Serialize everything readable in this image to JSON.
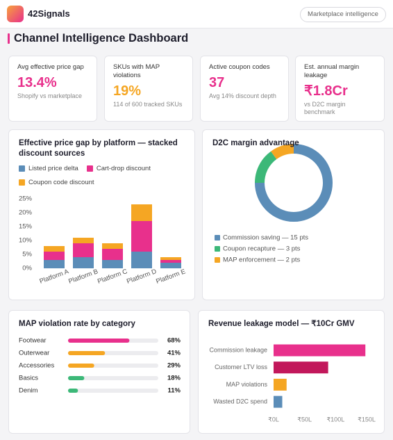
{
  "header": {
    "brand": "42Signals",
    "badge": "Marketplace intelligence"
  },
  "page_title": "Channel Intelligence Dashboard",
  "kpis": [
    {
      "label": "Avg effective price gap",
      "value": "13.4%",
      "note": "Shopify vs marketplace",
      "color": "#e8308c"
    },
    {
      "label": "SKUs with MAP violations",
      "value": "19%",
      "note": "114 of 600 tracked SKUs",
      "color": "#f5a623"
    },
    {
      "label": "Active coupon codes",
      "value": "37",
      "note": "Avg 14% discount depth",
      "color": "#e8308c"
    },
    {
      "label": "Est. annual margin leakage",
      "value": "₹1.8Cr",
      "note": "vs D2C margin benchmark",
      "color": "#e8308c"
    }
  ],
  "chart_data": [
    {
      "type": "stacked_bar",
      "title": "Effective price gap by platform — stacked discount sources",
      "categories": [
        "Platform A",
        "Platform B",
        "Platform C",
        "Platform D",
        "Platform E"
      ],
      "series": [
        {
          "name": "Listed price delta",
          "color": "#5b8db8",
          "values": [
            3,
            4,
            3,
            6,
            2
          ]
        },
        {
          "name": "Cart-drop discount",
          "color": "#e8308c",
          "values": [
            3,
            5,
            4,
            11,
            1
          ]
        },
        {
          "name": "Coupon code discount",
          "color": "#f5a623",
          "values": [
            2,
            2,
            2,
            6,
            1
          ]
        }
      ],
      "ylim": [
        0,
        25
      ],
      "yticks": [
        {
          "value": 0,
          "label": "0%"
        },
        {
          "value": 5,
          "label": "5%"
        },
        {
          "value": 10,
          "label": "10%"
        },
        {
          "value": 15,
          "label": "15%"
        },
        {
          "value": 20,
          "label": "20%"
        },
        {
          "value": 25,
          "label": "25%"
        }
      ],
      "grid": false
    },
    {
      "type": "donut",
      "title": "D2C margin advantage",
      "categories": [
        "Commission saving — 15 pts",
        "Coupon recapture — 3 pts",
        "MAP enforcement — 2 pts"
      ],
      "values": [
        15,
        3,
        2
      ],
      "colors": [
        "#5b8db8",
        "#3cb878",
        "#f5a623"
      ]
    },
    {
      "type": "progress_bar",
      "title": "MAP violation rate by category",
      "categories": [
        "Footwear",
        "Outerwear",
        "Accessories",
        "Basics",
        "Denim"
      ],
      "values": [
        68,
        41,
        29,
        18,
        11
      ],
      "value_labels": [
        "68%",
        "41%",
        "29%",
        "18%",
        "11%"
      ],
      "colors": [
        "#e8308c",
        "#f5a623",
        "#f5a623",
        "#3cb878",
        "#3cb878"
      ],
      "xlim": [
        0,
        100
      ]
    },
    {
      "type": "hbar",
      "title": "Revenue leakage model — ₹10Cr GMV",
      "categories": [
        "Commission leakage",
        "Customer LTV loss",
        "MAP violations",
        "Wasted D2C spend"
      ],
      "values": [
        148,
        88,
        21,
        14
      ],
      "colors": [
        "#e8308c",
        "#c2185b",
        "#f5a623",
        "#5b8db8"
      ],
      "xlim": [
        0,
        150
      ],
      "xticks": [
        {
          "value": 0,
          "label": "₹0L"
        },
        {
          "value": 50,
          "label": "₹50L"
        },
        {
          "value": 100,
          "label": "₹100L"
        },
        {
          "value": 150,
          "label": "₹150L"
        }
      ],
      "grid": false
    }
  ]
}
